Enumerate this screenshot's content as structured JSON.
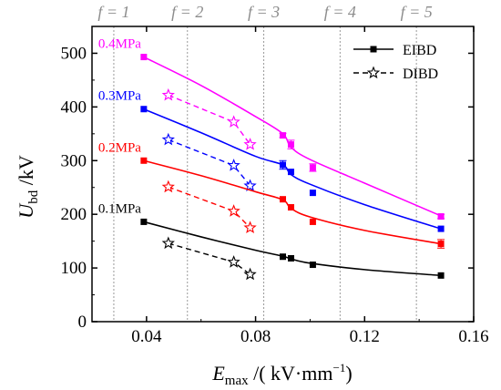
{
  "chart_data": {
    "type": "line",
    "xlabel": "E_max /( kV·mm⁻¹)",
    "xlabel_main": "E",
    "xlabel_sub": "max",
    "xlabel_rest": " /( kV·mm",
    "xlabel_sup": "−1",
    "xlabel_end": ")",
    "ylabel": "U_bd /kV",
    "ylabel_main": "U",
    "ylabel_sub": "bd",
    "ylabel_rest": " /kV",
    "xlim": [
      0.02,
      0.16
    ],
    "ylim": [
      0,
      550
    ],
    "xticks": [
      0.04,
      0.08,
      0.12,
      0.16
    ],
    "xtick_labels": [
      "0.04",
      "0.08",
      "0.12",
      "0.16"
    ],
    "yticks": [
      0,
      100,
      200,
      300,
      400,
      500
    ],
    "ytick_labels": [
      "0",
      "100",
      "200",
      "300",
      "400",
      "500"
    ],
    "f_lines": [
      {
        "label": "f = 1",
        "x": 0.028
      },
      {
        "label": "f = 2",
        "x": 0.055
      },
      {
        "label": "f = 3",
        "x": 0.083
      },
      {
        "label": "f = 4",
        "x": 0.111
      },
      {
        "label": "f = 5",
        "x": 0.139
      }
    ],
    "legend": {
      "position": "top-right",
      "entries": [
        {
          "label": "EIBD",
          "style": "solid",
          "marker": "square"
        },
        {
          "label": "DIBD",
          "style": "dashed",
          "marker": "star"
        }
      ]
    },
    "pressure_groups": [
      {
        "label": "0.4MPa",
        "color": "#ff00ff",
        "eibd": {
          "x": [
            0.039,
            0.09,
            0.093,
            0.101,
            0.148
          ],
          "y": [
            493,
            347,
            330,
            287,
            196
          ]
        },
        "eibd_err": [
          0,
          4,
          8,
          7,
          4
        ],
        "eibd_fit": {
          "x": [
            0.039,
            0.06,
            0.08,
            0.09,
            0.093,
            0.1,
            0.12,
            0.148
          ],
          "y": [
            493,
            440,
            382,
            350,
            325,
            302,
            258,
            197
          ]
        },
        "dibd": {
          "x": [
            0.048,
            0.072,
            0.078
          ],
          "y": [
            422,
            372,
            330
          ]
        }
      },
      {
        "label": "0.3MPa",
        "color": "#0000ff",
        "eibd": {
          "x": [
            0.039,
            0.09,
            0.093,
            0.101,
            0.148
          ],
          "y": [
            396,
            292,
            279,
            240,
            173
          ]
        },
        "eibd_err": [
          0,
          8,
          0,
          0,
          0
        ],
        "eibd_fit": {
          "x": [
            0.039,
            0.06,
            0.08,
            0.09,
            0.093,
            0.1,
            0.12,
            0.148
          ],
          "y": [
            396,
            352,
            308,
            292,
            274,
            256,
            218,
            173
          ]
        },
        "dibd": {
          "x": [
            0.048,
            0.072,
            0.078
          ],
          "y": [
            339,
            291,
            253
          ]
        }
      },
      {
        "label": "0.2MPa",
        "color": "#ff0000",
        "eibd": {
          "x": [
            0.039,
            0.09,
            0.093,
            0.101,
            0.148
          ],
          "y": [
            300,
            228,
            213,
            186,
            145
          ]
        },
        "eibd_err": [
          0,
          0,
          0,
          0,
          8
        ],
        "eibd_fit": {
          "x": [
            0.039,
            0.06,
            0.08,
            0.09,
            0.093,
            0.1,
            0.12,
            0.148
          ],
          "y": [
            300,
            272,
            242,
            227,
            211,
            195,
            170,
            145
          ]
        },
        "dibd": {
          "x": [
            0.048,
            0.072,
            0.078
          ],
          "y": [
            251,
            206,
            175
          ]
        }
      },
      {
        "label": "0.1MPa",
        "color": "#000000",
        "eibd": {
          "x": [
            0.039,
            0.09,
            0.093,
            0.101,
            0.148
          ],
          "y": [
            186,
            121,
            118,
            106,
            86
          ]
        },
        "eibd_err": [
          0,
          0,
          0,
          0,
          0
        ],
        "eibd_fit": {
          "x": [
            0.039,
            0.06,
            0.08,
            0.09,
            0.093,
            0.1,
            0.12,
            0.148
          ],
          "y": [
            186,
            158,
            133,
            122,
            117,
            109,
            97,
            86
          ]
        },
        "dibd": {
          "x": [
            0.048,
            0.072,
            0.078
          ],
          "y": [
            146,
            111,
            88
          ]
        }
      }
    ]
  }
}
